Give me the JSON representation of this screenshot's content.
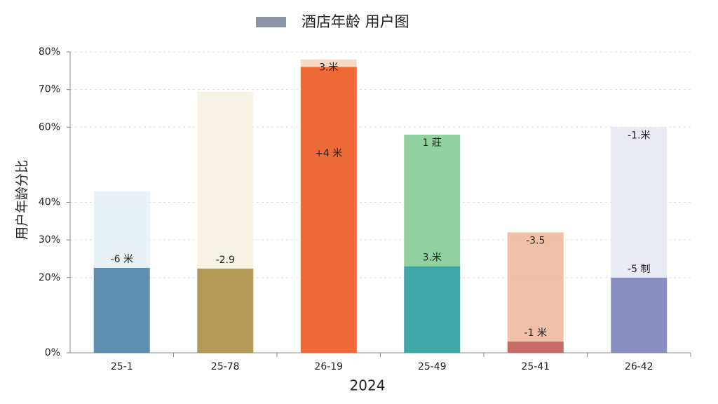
{
  "chart_data": {
    "type": "bar",
    "legend": "酒店年龄 用户图",
    "legend_color": "#8a96a6",
    "y_label": "用户年龄分比",
    "x_label": "2024",
    "categories": [
      "25-1",
      "25-78",
      "26-19",
      "25-49",
      "25-41",
      "26-42"
    ],
    "values": [
      22.6,
      22.4,
      76,
      23,
      3,
      20
    ],
    "colors": [
      "#5f8fb0",
      "#b39a58",
      "#ee6b38",
      "#3fa6a6",
      "#c56a66",
      "#8a8fc2"
    ],
    "upper_values": [
      20.4,
      47,
      2,
      35,
      29,
      40
    ],
    "upper_colors": [
      "#e3eef5",
      "#f5f1e0",
      "#f3d2b8",
      "#7cc98e",
      "#efb59a",
      "#e6e8f0"
    ],
    "base_labels": [
      "-6 米",
      "-2.9",
      "+4 米",
      "3.米",
      "-1 米",
      "-5 制"
    ],
    "upper_labels": [
      null,
      null,
      "3.米",
      "1 莊",
      "-3.5",
      "-1.米"
    ],
    "ylim": [
      0,
      80
    ],
    "yticks": [
      {
        "value": 0,
        "label": "0%"
      },
      {
        "value": 20,
        "label": "20%"
      },
      {
        "value": 30,
        "label": "30%"
      },
      {
        "value": 40,
        "label": "40%"
      },
      {
        "value": 60,
        "label": "60%"
      },
      {
        "value": 70,
        "label": "70%"
      },
      {
        "value": 80,
        "label": "80%"
      }
    ],
    "grid": true
  }
}
